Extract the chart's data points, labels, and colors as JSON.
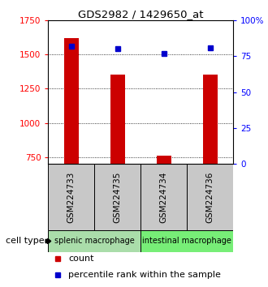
{
  "title": "GDS2982 / 1429650_at",
  "samples": [
    "GSM224733",
    "GSM224735",
    "GSM224734",
    "GSM224736"
  ],
  "counts": [
    1620,
    1350,
    760,
    1350
  ],
  "percentiles": [
    82,
    80,
    77,
    81
  ],
  "ylim_left": [
    700,
    1750
  ],
  "ylim_right": [
    0,
    100
  ],
  "yticks_left": [
    750,
    1000,
    1250,
    1500,
    1750
  ],
  "yticks_right": [
    0,
    25,
    50,
    75,
    100
  ],
  "bar_color": "#cc0000",
  "dot_color": "#0000cc",
  "groups": [
    {
      "label": "splenic macrophage",
      "samples": [
        0,
        1
      ],
      "color": "#aaddaa"
    },
    {
      "label": "intestinal macrophage",
      "samples": [
        2,
        3
      ],
      "color": "#77ee77"
    }
  ],
  "legend_count_label": "count",
  "legend_pct_label": "percentile rank within the sample",
  "cell_type_label": "cell type",
  "label_area_color": "#c8c8c8",
  "bg_color": "#ffffff"
}
